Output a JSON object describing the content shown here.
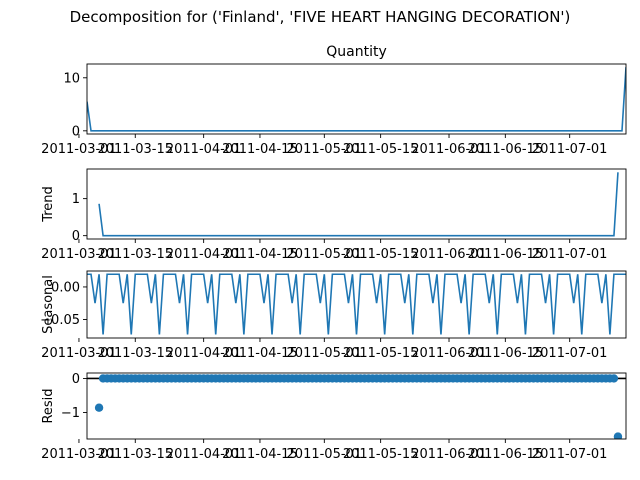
{
  "figure": {
    "suptitle": "Decomposition for ('Finland', 'FIVE HEART HANGING DECORATION')"
  },
  "colors": {
    "series": "#1f77b4",
    "axes": "#000000",
    "background": "#ffffff"
  },
  "chart_data": [
    {
      "type": "line",
      "title": "Quantity",
      "ylabel": "",
      "x_start": "2011-03-03",
      "x_end": "2011-07-15",
      "xlim": [
        "2011-03-03",
        "2011-07-15"
      ],
      "ylim": [
        -0.6,
        12.6
      ],
      "yticks": [
        0,
        10
      ],
      "xticks": [
        "2011-03-01",
        "2011-03-15",
        "2011-04-01",
        "2011-04-15",
        "2011-05-01",
        "2011-05-15",
        "2011-06-01",
        "2011-06-15",
        "2011-07-01"
      ],
      "points": [
        [
          "2011-03-03",
          5.5
        ],
        [
          "2011-03-04",
          0
        ],
        [
          "2011-07-14",
          0
        ],
        [
          "2011-07-15",
          12.0
        ]
      ],
      "grid": false
    },
    {
      "type": "line",
      "title": "",
      "ylabel": "Trend",
      "xlim": [
        "2011-03-03",
        "2011-07-15"
      ],
      "ylim": [
        -0.09,
        1.8
      ],
      "yticks": [
        0,
        1
      ],
      "xticks": [
        "2011-03-01",
        "2011-03-15",
        "2011-04-01",
        "2011-04-15",
        "2011-05-01",
        "2011-05-15",
        "2011-06-01",
        "2011-06-15",
        "2011-07-01"
      ],
      "points": [
        [
          "2011-03-06",
          0.86
        ],
        [
          "2011-03-07",
          0
        ],
        [
          "2011-07-12",
          0
        ],
        [
          "2011-07-13",
          1.71
        ]
      ],
      "grid": false
    },
    {
      "type": "line",
      "title": "",
      "ylabel": "Seasonal",
      "xlim": [
        "2011-03-03",
        "2011-07-15"
      ],
      "ylim": [
        -0.0785,
        0.0245
      ],
      "yticks": [
        0.0,
        -0.05
      ],
      "ytick_labels": [
        "0.00",
        "−0.05"
      ],
      "xticks": [
        "2011-03-01",
        "2011-03-15",
        "2011-04-01",
        "2011-04-15",
        "2011-05-01",
        "2011-05-15",
        "2011-06-01",
        "2011-06-15",
        "2011-07-01"
      ],
      "seasonal_period_days": 7,
      "seasonal_pattern": [
        0.0195,
        0.0195,
        -0.025,
        0.0195,
        -0.073,
        0.0195,
        0.0195
      ],
      "grid": false
    },
    {
      "type": "scatter",
      "title": "",
      "ylabel": "Resid",
      "xlim": [
        "2011-03-03",
        "2011-07-15"
      ],
      "ylim": [
        -1.78,
        0.16
      ],
      "yticks": [
        0,
        -1
      ],
      "ytick_labels": [
        "0",
        "−1"
      ],
      "xticks": [
        "2011-03-01",
        "2011-03-15",
        "2011-04-01",
        "2011-04-15",
        "2011-05-01",
        "2011-05-15",
        "2011-06-01",
        "2011-06-15",
        "2011-07-01"
      ],
      "reference_line": 0,
      "residual_range": [
        "2011-03-06",
        "2011-07-13"
      ],
      "outliers": [
        [
          "2011-03-06",
          -0.86
        ],
        [
          "2011-07-13",
          -1.71
        ]
      ],
      "grid": false
    }
  ]
}
